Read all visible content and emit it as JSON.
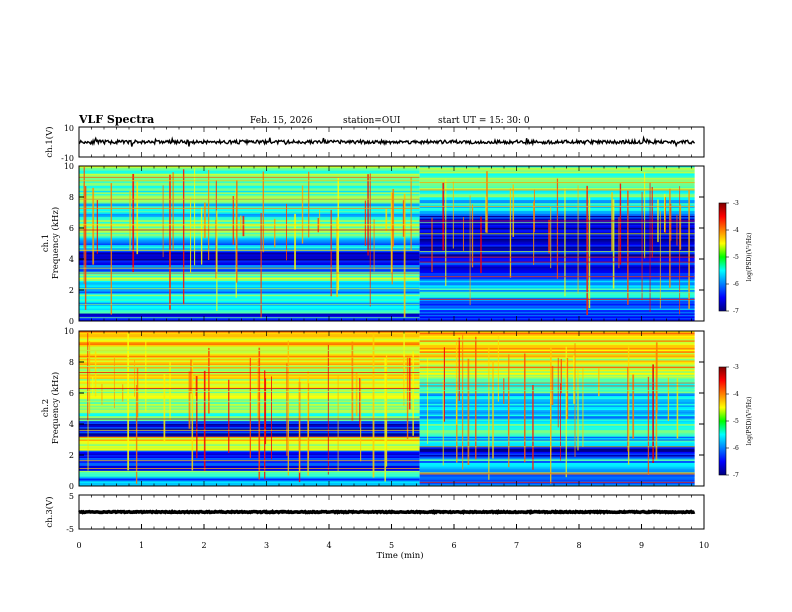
{
  "header": {
    "title": "VLF Spectra",
    "date": "Feb. 15, 2026",
    "station": "station=OUI",
    "start": "start  UT =  15: 30: 0"
  },
  "chart_data": [
    {
      "type": "line",
      "panel": "ch1-waveform",
      "ylabel": "ch.1(V)",
      "ylim": [
        -10,
        10
      ],
      "yticks": [
        "10",
        "-10"
      ],
      "xlim": [
        0,
        10
      ],
      "series": [
        {
          "baseline": 0,
          "amplitude": 1.2,
          "end_x": 9.85
        }
      ]
    },
    {
      "type": "heatmap",
      "panel": "ch1-spectrogram",
      "ylabel_top": "ch.1",
      "ylabel": "Frequency (kHz)",
      "ylim": [
        0,
        10
      ],
      "yticks": [
        "0",
        "2",
        "4",
        "6",
        "8",
        "10"
      ],
      "xlim": [
        0,
        10
      ],
      "data_end_x": 9.85,
      "colorbar": {
        "label": "log(PSD)(V²/Hz)",
        "range": [
          -7,
          -3
        ],
        "ticks": [
          "-3",
          "-4",
          "-5",
          "-6",
          "-7"
        ]
      },
      "change_time_min": 5.45,
      "segments": [
        {
          "t_start": 0,
          "t_end": 5.45,
          "bands": [
            [
              0,
              0.5,
              -6.3
            ],
            [
              0.5,
              1.2,
              -5.6
            ],
            [
              1.2,
              1.8,
              -5.2
            ],
            [
              1.8,
              2.6,
              -5.8
            ],
            [
              2.6,
              3.2,
              -5.0
            ],
            [
              3.2,
              3.8,
              -6.2
            ],
            [
              3.8,
              4.5,
              -6.8
            ],
            [
              4.5,
              5.4,
              -5.8
            ],
            [
              5.4,
              6.6,
              -5.1
            ],
            [
              6.6,
              7.6,
              -5.5
            ],
            [
              7.6,
              8.8,
              -5.2
            ],
            [
              8.8,
              10,
              -5.0
            ]
          ]
        },
        {
          "t_start": 5.45,
          "t_end": 9.85,
          "bands": [
            [
              0,
              0.5,
              -6.5
            ],
            [
              0.5,
              1.4,
              -6.0
            ],
            [
              1.4,
              2.2,
              -5.6
            ],
            [
              2.2,
              3.0,
              -6.0
            ],
            [
              3.0,
              3.8,
              -6.5
            ],
            [
              3.8,
              5.0,
              -6.6
            ],
            [
              5.0,
              5.8,
              -6.8
            ],
            [
              5.8,
              6.8,
              -6.6
            ],
            [
              6.8,
              8.0,
              -5.7
            ],
            [
              8.0,
              10,
              -5.2
            ]
          ]
        }
      ]
    },
    {
      "type": "heatmap",
      "panel": "ch2-spectrogram",
      "ylabel_top": "ch.2",
      "ylabel": "Frequency (kHz)",
      "ylim": [
        0,
        10
      ],
      "yticks": [
        "0",
        "2",
        "4",
        "6",
        "8",
        "10"
      ],
      "xlim": [
        0,
        10
      ],
      "data_end_x": 9.85,
      "colorbar": {
        "label": "log(PSD)(V²/Hz)",
        "range": [
          -7,
          -3
        ],
        "ticks": [
          "-3",
          "-4",
          "-5",
          "-6",
          "-7"
        ]
      },
      "change_time_min": 5.45,
      "segments": [
        {
          "t_start": 0,
          "t_end": 5.45,
          "bands": [
            [
              0,
              0.5,
              -6.0
            ],
            [
              0.5,
              1.0,
              -5.6
            ],
            [
              1.0,
              2.3,
              -6.3
            ],
            [
              2.3,
              2.7,
              -4.8
            ],
            [
              2.7,
              3.2,
              -4.4
            ],
            [
              3.2,
              4.2,
              -6.6
            ],
            [
              4.2,
              5.2,
              -5.2
            ],
            [
              5.2,
              6.2,
              -4.9
            ],
            [
              6.2,
              7.6,
              -4.6
            ],
            [
              7.6,
              8.8,
              -4.4
            ],
            [
              8.8,
              10,
              -4.3
            ]
          ]
        },
        {
          "t_start": 5.45,
          "t_end": 9.85,
          "bands": [
            [
              0,
              0.5,
              -6.2
            ],
            [
              0.5,
              1.8,
              -5.9
            ],
            [
              1.8,
              2.6,
              -6.6
            ],
            [
              2.6,
              3.2,
              -5.9
            ],
            [
              3.2,
              4.0,
              -5.0
            ],
            [
              4.0,
              5.0,
              -5.7
            ],
            [
              5.0,
              6.0,
              -5.6
            ],
            [
              6.0,
              7.2,
              -5.1
            ],
            [
              7.2,
              8.6,
              -4.6
            ],
            [
              8.6,
              10,
              -4.3
            ]
          ]
        }
      ]
    },
    {
      "type": "line",
      "panel": "ch3-waveform",
      "ylabel": "ch.3(V)",
      "ylim": [
        -5,
        5
      ],
      "yticks": [
        "5",
        "-5"
      ],
      "xlim": [
        0,
        10
      ],
      "xlabel": "Time (min)",
      "xticks": [
        "0",
        "1",
        "2",
        "3",
        "4",
        "5",
        "6",
        "7",
        "8",
        "9",
        "10"
      ],
      "series": [
        {
          "baseline": 0,
          "amplitude": 0.15,
          "end_x": 9.85
        }
      ]
    }
  ]
}
